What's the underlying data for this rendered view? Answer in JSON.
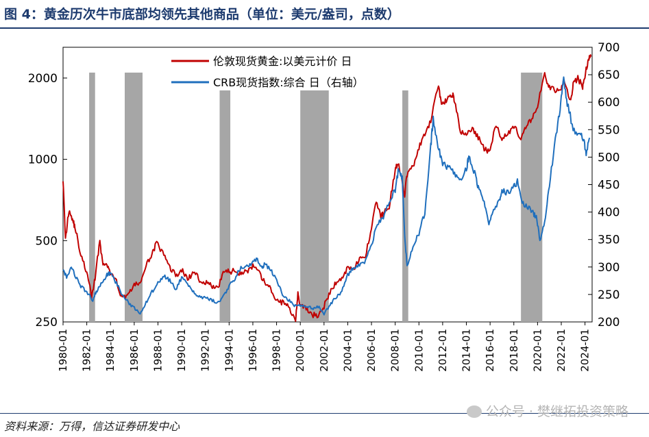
{
  "title": "图 4：黄金历次牛市底部均领先其他商品（单位：美元/盎司，点数）",
  "source": "资料来源：万得，信达证券研发中心",
  "watermark": "公众号 · 樊继拓投资策略",
  "colors": {
    "gold": "#c00000",
    "crb": "#1f6fbd",
    "shade": "#a6a6a6",
    "title": "#1c3a6e"
  },
  "chart_data": {
    "type": "line",
    "title": "",
    "x_labels": [
      "1980-01",
      "1982-01",
      "1984-01",
      "1986-01",
      "1988-01",
      "1990-01",
      "1992-01",
      "1994-01",
      "1996-01",
      "1998-01",
      "2000-01",
      "2002-01",
      "2004-01",
      "2006-01",
      "2008-01",
      "2010-01",
      "2012-01",
      "2014-01",
      "2016-01",
      "2018-01",
      "2020-01",
      "2022-01",
      "2024-01"
    ],
    "x_range": [
      1980.0,
      2024.6
    ],
    "y_left": {
      "scale": "log",
      "range": [
        250,
        2600
      ],
      "ticks": [
        250,
        500,
        1000,
        2000
      ],
      "tick_labels": [
        "250",
        "500",
        "1000",
        "2000"
      ]
    },
    "y_right": {
      "scale": "linear",
      "range": [
        200,
        700
      ],
      "ticks": [
        200,
        250,
        300,
        350,
        400,
        450,
        500,
        550,
        600,
        650,
        700
      ],
      "tick_labels": [
        "200",
        "250",
        "300",
        "350",
        "400",
        "450",
        "500",
        "550",
        "600",
        "650",
        "700"
      ]
    },
    "shaded_periods": [
      [
        1982.2,
        1982.7
      ],
      [
        1985.2,
        1986.7
      ],
      [
        1993.2,
        1994.1
      ],
      [
        2000.0,
        2002.4
      ],
      [
        2008.6,
        2009.1
      ],
      [
        2018.6,
        2020.4
      ]
    ],
    "series": [
      {
        "name": "伦敦现货黄金:以美元计价 日",
        "axis": "left",
        "color": "#c00000",
        "points": [
          [
            1980.0,
            850
          ],
          [
            1980.2,
            500
          ],
          [
            1980.5,
            650
          ],
          [
            1980.8,
            600
          ],
          [
            1981.0,
            560
          ],
          [
            1981.5,
            440
          ],
          [
            1982.0,
            380
          ],
          [
            1982.4,
            310
          ],
          [
            1982.7,
            360
          ],
          [
            1983.1,
            500
          ],
          [
            1983.3,
            420
          ],
          [
            1983.7,
            400
          ],
          [
            1984.0,
            380
          ],
          [
            1984.5,
            350
          ],
          [
            1985.0,
            305
          ],
          [
            1985.5,
            320
          ],
          [
            1986.0,
            340
          ],
          [
            1986.5,
            350
          ],
          [
            1987.0,
            400
          ],
          [
            1987.5,
            450
          ],
          [
            1987.9,
            490
          ],
          [
            1988.5,
            440
          ],
          [
            1989.0,
            400
          ],
          [
            1989.5,
            370
          ],
          [
            1990.0,
            390
          ],
          [
            1990.5,
            360
          ],
          [
            1991.0,
            380
          ],
          [
            1991.5,
            360
          ],
          [
            1992.0,
            350
          ],
          [
            1992.5,
            340
          ],
          [
            1993.0,
            330
          ],
          [
            1993.5,
            380
          ],
          [
            1994.0,
            385
          ],
          [
            1994.5,
            385
          ],
          [
            1995.0,
            380
          ],
          [
            1995.5,
            385
          ],
          [
            1996.0,
            400
          ],
          [
            1996.5,
            380
          ],
          [
            1997.0,
            350
          ],
          [
            1997.5,
            330
          ],
          [
            1998.0,
            300
          ],
          [
            1998.5,
            295
          ],
          [
            1999.0,
            285
          ],
          [
            1999.6,
            255
          ],
          [
            1999.8,
            320
          ],
          [
            2000.0,
            285
          ],
          [
            2000.5,
            280
          ],
          [
            2001.0,
            265
          ],
          [
            2001.5,
            265
          ],
          [
            2002.0,
            285
          ],
          [
            2002.5,
            320
          ],
          [
            2003.0,
            350
          ],
          [
            2003.5,
            360
          ],
          [
            2004.0,
            400
          ],
          [
            2004.5,
            395
          ],
          [
            2005.0,
            425
          ],
          [
            2005.5,
            435
          ],
          [
            2006.0,
            560
          ],
          [
            2006.4,
            700
          ],
          [
            2006.8,
            610
          ],
          [
            2007.0,
            630
          ],
          [
            2007.5,
            670
          ],
          [
            2008.0,
            900
          ],
          [
            2008.2,
            980
          ],
          [
            2008.8,
            740
          ],
          [
            2009.0,
            880
          ],
          [
            2009.5,
            940
          ],
          [
            2010.0,
            1100
          ],
          [
            2010.5,
            1230
          ],
          [
            2011.0,
            1380
          ],
          [
            2011.65,
            1880
          ],
          [
            2011.9,
            1600
          ],
          [
            2012.3,
            1650
          ],
          [
            2012.8,
            1760
          ],
          [
            2013.0,
            1650
          ],
          [
            2013.5,
            1250
          ],
          [
            2014.0,
            1250
          ],
          [
            2014.5,
            1300
          ],
          [
            2015.0,
            1200
          ],
          [
            2015.5,
            1100
          ],
          [
            2015.9,
            1060
          ],
          [
            2016.5,
            1330
          ],
          [
            2017.0,
            1200
          ],
          [
            2017.5,
            1250
          ],
          [
            2018.0,
            1330
          ],
          [
            2018.6,
            1190
          ],
          [
            2019.0,
            1300
          ],
          [
            2019.5,
            1420
          ],
          [
            2020.0,
            1560
          ],
          [
            2020.6,
            2050
          ],
          [
            2021.0,
            1850
          ],
          [
            2021.5,
            1800
          ],
          [
            2022.0,
            1810
          ],
          [
            2022.2,
            1950
          ],
          [
            2022.8,
            1640
          ],
          [
            2023.0,
            1900
          ],
          [
            2023.4,
            2000
          ],
          [
            2023.8,
            1850
          ],
          [
            2024.0,
            2050
          ],
          [
            2024.3,
            2350
          ],
          [
            2024.5,
            2400
          ]
        ]
      },
      {
        "name": "CRB现货指数:综合 日（右轴）",
        "axis": "right",
        "color": "#1f6fbd",
        "points": [
          [
            1980.0,
            295
          ],
          [
            1980.3,
            280
          ],
          [
            1980.7,
            300
          ],
          [
            1981.0,
            285
          ],
          [
            1981.5,
            265
          ],
          [
            1982.0,
            255
          ],
          [
            1982.5,
            240
          ],
          [
            1982.8,
            255
          ],
          [
            1983.2,
            270
          ],
          [
            1983.7,
            285
          ],
          [
            1984.0,
            290
          ],
          [
            1984.5,
            270
          ],
          [
            1985.0,
            250
          ],
          [
            1985.5,
            235
          ],
          [
            1986.0,
            225
          ],
          [
            1986.5,
            215
          ],
          [
            1987.0,
            235
          ],
          [
            1987.5,
            255
          ],
          [
            1988.0,
            270
          ],
          [
            1988.5,
            285
          ],
          [
            1989.0,
            275
          ],
          [
            1989.5,
            260
          ],
          [
            1990.0,
            280
          ],
          [
            1990.5,
            270
          ],
          [
            1991.0,
            255
          ],
          [
            1991.5,
            245
          ],
          [
            1992.0,
            245
          ],
          [
            1992.5,
            240
          ],
          [
            1993.0,
            235
          ],
          [
            1993.5,
            245
          ],
          [
            1994.0,
            265
          ],
          [
            1994.5,
            280
          ],
          [
            1995.0,
            300
          ],
          [
            1995.5,
            300
          ],
          [
            1996.0,
            310
          ],
          [
            1996.3,
            315
          ],
          [
            1996.8,
            300
          ],
          [
            1997.0,
            305
          ],
          [
            1997.5,
            295
          ],
          [
            1998.0,
            275
          ],
          [
            1998.5,
            250
          ],
          [
            1999.0,
            240
          ],
          [
            1999.5,
            230
          ],
          [
            2000.0,
            230
          ],
          [
            2000.5,
            228
          ],
          [
            2001.0,
            225
          ],
          [
            2001.5,
            228
          ],
          [
            2002.0,
            215
          ],
          [
            2002.5,
            230
          ],
          [
            2003.0,
            245
          ],
          [
            2003.5,
            255
          ],
          [
            2004.0,
            285
          ],
          [
            2004.5,
            300
          ],
          [
            2005.0,
            305
          ],
          [
            2005.5,
            310
          ],
          [
            2006.0,
            340
          ],
          [
            2006.5,
            380
          ],
          [
            2007.0,
            390
          ],
          [
            2007.5,
            420
          ],
          [
            2008.0,
            440
          ],
          [
            2008.3,
            480
          ],
          [
            2008.6,
            460
          ],
          [
            2008.8,
            360
          ],
          [
            2009.0,
            300
          ],
          [
            2009.5,
            340
          ],
          [
            2010.0,
            360
          ],
          [
            2010.5,
            400
          ],
          [
            2011.0,
            520
          ],
          [
            2011.2,
            570
          ],
          [
            2011.6,
            520
          ],
          [
            2012.0,
            490
          ],
          [
            2012.5,
            480
          ],
          [
            2013.0,
            470
          ],
          [
            2013.5,
            460
          ],
          [
            2014.0,
            480
          ],
          [
            2014.2,
            500
          ],
          [
            2014.7,
            470
          ],
          [
            2015.0,
            445
          ],
          [
            2015.5,
            420
          ],
          [
            2015.9,
            380
          ],
          [
            2016.3,
            400
          ],
          [
            2016.8,
            420
          ],
          [
            2017.0,
            440
          ],
          [
            2017.5,
            435
          ],
          [
            2018.0,
            445
          ],
          [
            2018.3,
            455
          ],
          [
            2018.7,
            415
          ],
          [
            2019.2,
            410
          ],
          [
            2019.6,
            400
          ],
          [
            2019.9,
            390
          ],
          [
            2020.2,
            350
          ],
          [
            2020.6,
            380
          ],
          [
            2021.0,
            450
          ],
          [
            2021.5,
            530
          ],
          [
            2021.9,
            590
          ],
          [
            2022.2,
            640
          ],
          [
            2022.5,
            600
          ],
          [
            2023.0,
            550
          ],
          [
            2023.5,
            545
          ],
          [
            2023.9,
            530
          ],
          [
            2024.1,
            505
          ],
          [
            2024.4,
            535
          ]
        ]
      }
    ]
  }
}
